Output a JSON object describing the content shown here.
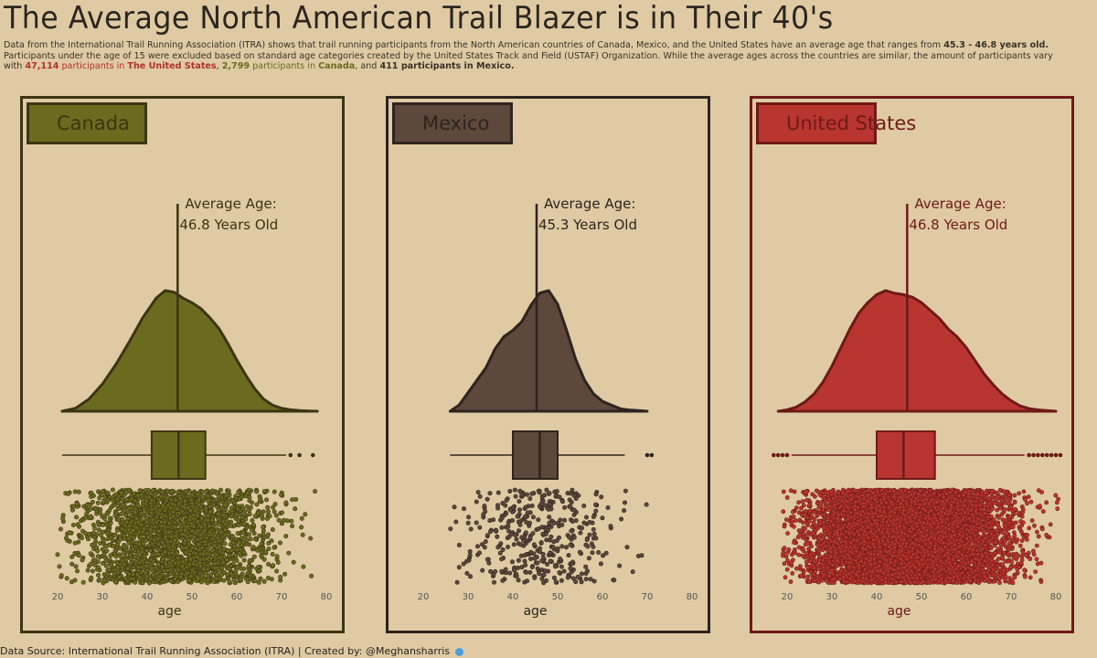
{
  "title": "The Average North American Trail Blazer is in Their 40's",
  "subtitle": {
    "line1_pre": "Data from the International Trail Running Association (ITRA) shows that trail running participants from the North American countries of Canada, Mexico, and the United States have an average age that ranges from ",
    "line1_bold": "45.3 - 46.8 years old",
    "line1_post": ".",
    "line2": "Participants under the age of 15 were excluded based on standard age categories created by the United States Track and Field (USTAF) Organization. While the average ages across the countries are similar, the amount of participants vary",
    "line3_with": "with ",
    "us_count": "47,114",
    "us_mid": " participants in ",
    "us_name": "The United States",
    "sep1": ", ",
    "ca_count": "2,799",
    "ca_mid": "  participants in ",
    "ca_name": "Canada",
    "sep2": ", and ",
    "mx_text": "411 participants in Mexico."
  },
  "footer": "Data Source: International Trail Running Association (ITRA) | Created by: @Meghansharris",
  "icons": {
    "footer_icon": "twitter-bird-icon"
  },
  "chart_data": [
    {
      "type": "density+boxplot+jitter",
      "country": "Canada",
      "color": "#6b6b1f",
      "dark": "#3c3514",
      "participants": 2799,
      "mean_label": "Average Age:",
      "mean_value_label": "46.8 Years Old",
      "mean": 46.8,
      "xlabel": "age",
      "xlim": [
        20,
        80
      ],
      "xticks": [
        20,
        30,
        40,
        50,
        60,
        70,
        80
      ],
      "density": {
        "x": [
          21,
          24,
          27,
          30,
          33,
          36,
          39,
          42,
          44,
          46,
          48,
          50,
          52,
          54,
          56,
          58,
          60,
          62,
          64,
          66,
          68,
          70,
          72,
          74,
          76,
          78
        ],
        "y": [
          0.0,
          0.02,
          0.08,
          0.18,
          0.31,
          0.46,
          0.62,
          0.75,
          0.8,
          0.79,
          0.75,
          0.72,
          0.68,
          0.62,
          0.55,
          0.45,
          0.34,
          0.24,
          0.15,
          0.08,
          0.04,
          0.02,
          0.01,
          0.005,
          0.002,
          0.0
        ]
      },
      "box": {
        "whisker_low": 21,
        "q1": 41,
        "median": 47,
        "q3": 53,
        "whisker_high": 71,
        "outliers": [
          72,
          74,
          77
        ]
      },
      "jitter_range": [
        20,
        78
      ]
    },
    {
      "type": "density+boxplot+jitter",
      "country": "Mexico",
      "color": "#5e473b",
      "dark": "#2e241f",
      "participants": 411,
      "mean_label": "Average Age:",
      "mean_value_label": "45.3 Years Old",
      "mean": 45.3,
      "xlabel": "age",
      "xlim": [
        20,
        80
      ],
      "xticks": [
        20,
        30,
        40,
        50,
        60,
        70,
        80
      ],
      "density": {
        "x": [
          26,
          28,
          30,
          32,
          34,
          36,
          38,
          40,
          42,
          44,
          46,
          48,
          50,
          52,
          54,
          56,
          58,
          60,
          62,
          64,
          66,
          68,
          70
        ],
        "y": [
          0.0,
          0.05,
          0.15,
          0.25,
          0.35,
          0.5,
          0.6,
          0.65,
          0.72,
          0.85,
          0.95,
          0.97,
          0.86,
          0.65,
          0.42,
          0.25,
          0.14,
          0.08,
          0.05,
          0.02,
          0.01,
          0.005,
          0.0
        ]
      },
      "box": {
        "whisker_low": 26,
        "q1": 40,
        "median": 46,
        "q3": 50,
        "whisker_high": 65,
        "outliers": [
          70,
          71
        ]
      },
      "jitter_range": [
        26,
        71
      ]
    },
    {
      "type": "density+boxplot+jitter",
      "country": "United States",
      "color": "#b93530",
      "dark": "#6e1a17",
      "participants": 47114,
      "mean_label": "Average Age:",
      "mean_value_label": "46.8 Years Old",
      "mean": 46.8,
      "xlabel": "age",
      "xlim": [
        20,
        80
      ],
      "xticks": [
        20,
        30,
        40,
        50,
        60,
        70,
        80
      ],
      "density": {
        "x": [
          18,
          20,
          22,
          24,
          26,
          28,
          30,
          32,
          34,
          36,
          38,
          40,
          42,
          44,
          46,
          48,
          50,
          52,
          54,
          56,
          58,
          60,
          62,
          64,
          66,
          68,
          70,
          72,
          74,
          76,
          78,
          80
        ],
        "y": [
          0.0,
          0.01,
          0.03,
          0.07,
          0.13,
          0.22,
          0.34,
          0.48,
          0.62,
          0.74,
          0.82,
          0.88,
          0.91,
          0.89,
          0.88,
          0.86,
          0.82,
          0.76,
          0.7,
          0.62,
          0.56,
          0.48,
          0.38,
          0.28,
          0.2,
          0.13,
          0.08,
          0.04,
          0.02,
          0.01,
          0.005,
          0.0
        ]
      },
      "box": {
        "whisker_low": 21,
        "q1": 40,
        "median": 46,
        "q3": 53,
        "whisker_high": 73,
        "outliers_low": [
          17,
          18,
          19,
          20
        ],
        "outliers_high": [
          74,
          75,
          76,
          77,
          78,
          79,
          80,
          81
        ]
      },
      "jitter_range": [
        19,
        81
      ]
    }
  ]
}
